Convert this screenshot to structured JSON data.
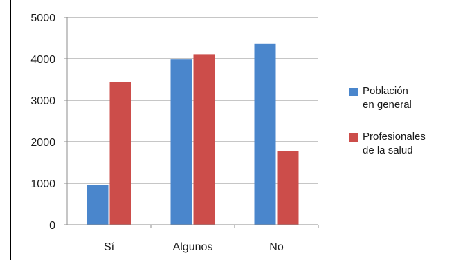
{
  "chart_data": {
    "type": "bar",
    "categories": [
      "Sí",
      "Algunos",
      "No"
    ],
    "series": [
      {
        "name": "Población\nen general",
        "values": [
          950,
          3980,
          4370
        ],
        "color": "#4a86cc"
      },
      {
        "name": "Profesionales\nde la salud",
        "values": [
          3450,
          4110,
          1780
        ],
        "color": "#cc4d4a"
      }
    ],
    "ylim": [
      0,
      5000
    ],
    "yticks": [
      0,
      1000,
      2000,
      3000,
      4000,
      5000
    ],
    "grid": true,
    "legend_position": "right",
    "title": "",
    "xlabel": "",
    "ylabel": ""
  }
}
